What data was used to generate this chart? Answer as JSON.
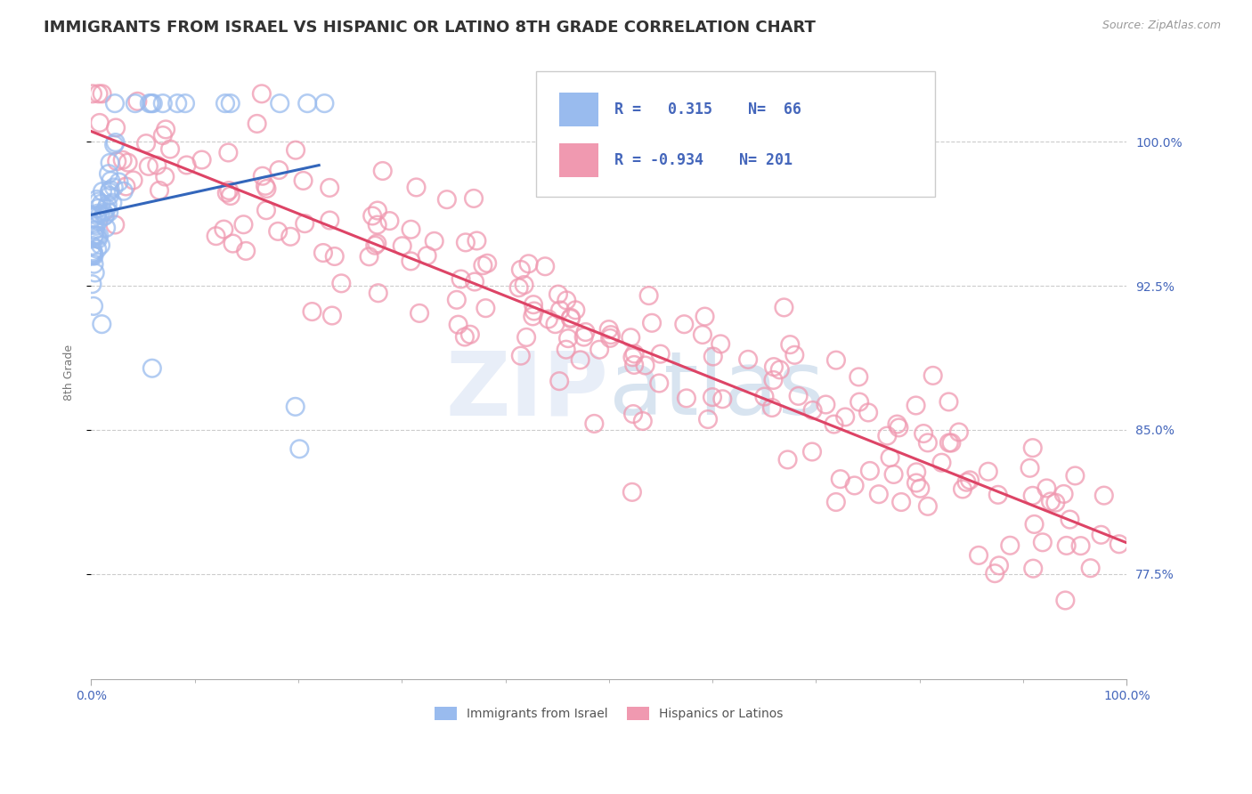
{
  "title": "IMMIGRANTS FROM ISRAEL VS HISPANIC OR LATINO 8TH GRADE CORRELATION CHART",
  "source_text": "Source: ZipAtlas.com",
  "ylabel": "8th Grade",
  "xlim": [
    0.0,
    1.0
  ],
  "ylim": [
    0.72,
    1.04
  ],
  "yticks": [
    0.775,
    0.85,
    0.925,
    1.0
  ],
  "ytick_labels": [
    "77.5%",
    "85.0%",
    "92.5%",
    "100.0%"
  ],
  "legend_R1": "0.315",
  "legend_N1": "66",
  "legend_R2": "-0.934",
  "legend_N2": "201",
  "blue_color": "#99bbee",
  "pink_color": "#f099b0",
  "blue_line_color": "#3366bb",
  "pink_line_color": "#dd4466",
  "background_color": "#ffffff",
  "grid_color": "#cccccc",
  "watermark_color": "#e8eef8",
  "title_fontsize": 13,
  "label_fontsize": 9,
  "tick_fontsize": 10,
  "axis_label_color": "#4466bb",
  "blue_N": 66,
  "pink_N": 201,
  "blue_seed": 42,
  "pink_seed": 7
}
